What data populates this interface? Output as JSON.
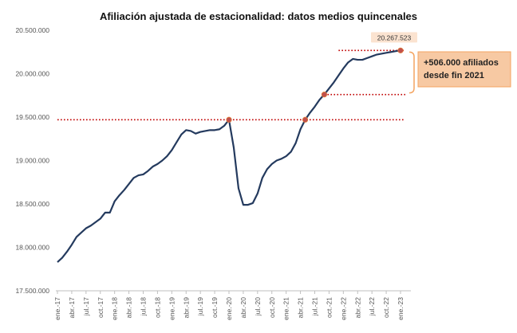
{
  "chart_data": {
    "type": "line",
    "title": "Afiliación ajustada de estacionalidad: datos medios quincenales",
    "xlabel": "",
    "ylabel": "",
    "ylim": [
      17500000,
      20500000
    ],
    "yticks": [
      17500000,
      18000000,
      18500000,
      19000000,
      19500000,
      20000000,
      20500000
    ],
    "ytick_labels": [
      "17.500.000",
      "18.000.000",
      "18.500.000",
      "19.000.000",
      "19.500.000",
      "20.000.000",
      "20.500.000"
    ],
    "xtick_labels": [
      "ene.-17",
      "abr.-17",
      "jul.-17",
      "oct.-17",
      "ene.-18",
      "abr.-18",
      "jul.-18",
      "oct.-18",
      "ene.-19",
      "abr.-19",
      "jul.-19",
      "oct.-19",
      "ene.-20",
      "abr.-20",
      "jul.-20",
      "oct.-20",
      "ene.-21",
      "abr.-21",
      "jul.-21",
      "oct.-21",
      "ene.-22",
      "abr.-22",
      "jul.-22",
      "oct.-22",
      "ene.-23"
    ],
    "grid": false,
    "legend": "none",
    "series": [
      {
        "name": "",
        "color": "#243a5e",
        "x": [
          0,
          1,
          2,
          3,
          4,
          5,
          6,
          7,
          8,
          9,
          10,
          11,
          12,
          13,
          14,
          15,
          16,
          17,
          18,
          19,
          20,
          21,
          22,
          23,
          24,
          25,
          26,
          27,
          28,
          29,
          30,
          31,
          32,
          33,
          34,
          35,
          36,
          37,
          38,
          39,
          40,
          41,
          42,
          43,
          44,
          45,
          46,
          47,
          48,
          49,
          50,
          51,
          52,
          53,
          54,
          55,
          56,
          57,
          58,
          59,
          60,
          61,
          62,
          63,
          64,
          65,
          66,
          67,
          68,
          69,
          70,
          71,
          72
        ],
        "values": [
          17830000,
          17880000,
          17950000,
          18030000,
          18120000,
          18170000,
          18220000,
          18250000,
          18290000,
          18330000,
          18400000,
          18400000,
          18530000,
          18600000,
          18660000,
          18730000,
          18800000,
          18830000,
          18840000,
          18880000,
          18930000,
          18960000,
          19000000,
          19050000,
          19120000,
          19210000,
          19300000,
          19350000,
          19340000,
          19310000,
          19330000,
          19340000,
          19350000,
          19350000,
          19360000,
          19400000,
          19470000,
          19150000,
          18680000,
          18490000,
          18490000,
          18510000,
          18620000,
          18800000,
          18900000,
          18960000,
          19000000,
          19020000,
          19050000,
          19100000,
          19200000,
          19360000,
          19470000,
          19550000,
          19620000,
          19700000,
          19760000,
          19830000,
          19900000,
          19980000,
          20060000,
          20130000,
          20170000,
          20160000,
          20160000,
          20180000,
          20200000,
          20220000,
          20230000,
          20240000,
          20250000,
          20260000,
          20267523
        ]
      }
    ],
    "reference_lines": [
      {
        "value": 19470000,
        "color": "#c00000",
        "style": "dotted",
        "x_from": 0,
        "x_to": 72
      },
      {
        "value": 20267523,
        "color": "#c00000",
        "style": "dotted",
        "x_from": 59,
        "x_to": 72
      },
      {
        "value": 19760000,
        "color": "#c00000",
        "style": "dotted",
        "x_from": 56,
        "x_to": 72
      }
    ],
    "highlight_points": [
      {
        "x": 36,
        "value": 19470000
      },
      {
        "x": 52,
        "value": 19470000
      },
      {
        "x": 56,
        "value": 19760000
      },
      {
        "x": 72,
        "value": 20267523
      }
    ],
    "end_label": "20.267.523",
    "annotation": {
      "line1": "+506.000  afiliados",
      "line2": "desde fin 2021",
      "range": [
        19760000,
        20267523
      ],
      "fill": "#f7c9a3",
      "border": "#f4a460"
    },
    "x_label_every": 3
  }
}
